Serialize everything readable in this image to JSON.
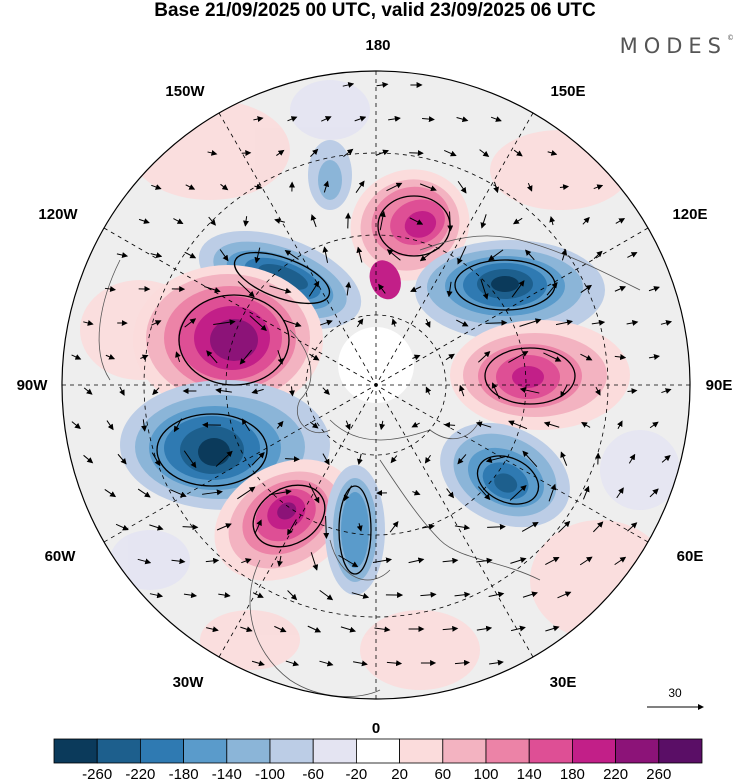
{
  "title": "Base 21/09/2025 00 UTC, valid 23/09/2025 06 UTC",
  "brand": {
    "text": "MODES",
    "mark": "©"
  },
  "longitude_labels": {
    "top": "180",
    "bottom": "0",
    "left": "90W",
    "right": "90E",
    "w150": "150W",
    "e150": "150E",
    "w120": "120W",
    "e120": "120E",
    "w60": "60W",
    "e60": "60E",
    "w30": "30W",
    "e30": "30E"
  },
  "vector_reference": {
    "value": "30"
  },
  "colorbar": {
    "tick_labels": [
      "-260",
      "-220",
      "-180",
      "-140",
      "-100",
      "-60",
      "-20",
      "20",
      "60",
      "100",
      "140",
      "180",
      "220",
      "260"
    ],
    "colors": [
      "#0b3a5b",
      "#1d5f8d",
      "#2f7ab2",
      "#5a9bcb",
      "#8bb5d8",
      "#bccde6",
      "#e4e4f2",
      "#ffffff",
      "#fbdcdc",
      "#f3b3c1",
      "#ec83a7",
      "#de4f95",
      "#c21f88",
      "#8c1378",
      "#5a0e66"
    ]
  },
  "anomaly_cells": [
    {
      "label": "neg",
      "value": -230
    },
    {
      "label": "pos",
      "value": 250
    }
  ]
}
